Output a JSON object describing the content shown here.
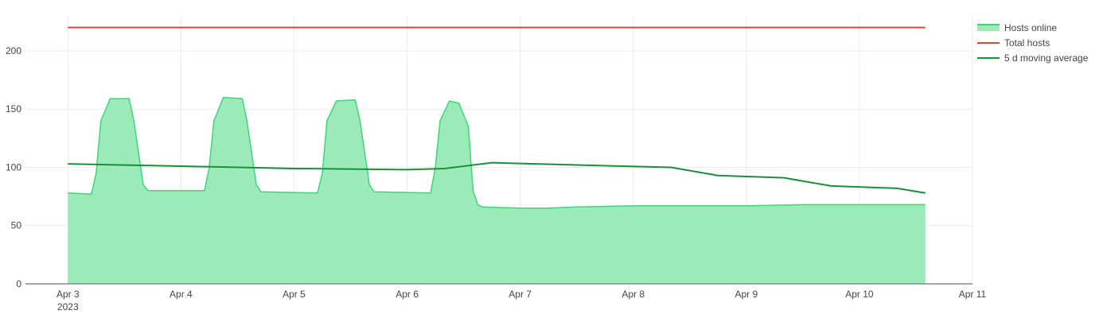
{
  "chart_data": {
    "type": "area",
    "x_axis": {
      "type": "date",
      "range": [
        "2023-04-02T15:00",
        "2023-04-11T00:00"
      ],
      "ticks": [
        {
          "value": "2023-04-03",
          "label": "Apr 3",
          "sublabel": "2023"
        },
        {
          "value": "2023-04-04",
          "label": "Apr 4"
        },
        {
          "value": "2023-04-05",
          "label": "Apr 5"
        },
        {
          "value": "2023-04-06",
          "label": "Apr 6"
        },
        {
          "value": "2023-04-07",
          "label": "Apr 7"
        },
        {
          "value": "2023-04-08",
          "label": "Apr 8"
        },
        {
          "value": "2023-04-09",
          "label": "Apr 9"
        },
        {
          "value": "2023-04-10",
          "label": "Apr 10"
        },
        {
          "value": "2023-04-11",
          "label": "Apr 11"
        }
      ]
    },
    "y_axis": {
      "range": [
        0,
        230
      ],
      "ticks": [
        {
          "value": 0,
          "label": "0"
        },
        {
          "value": 50,
          "label": "50"
        },
        {
          "value": 100,
          "label": "100"
        },
        {
          "value": 150,
          "label": "150"
        },
        {
          "value": 200,
          "label": "200"
        }
      ]
    },
    "grid": true,
    "legend_position": "top-right",
    "series": [
      {
        "name": "Hosts online",
        "kind": "area",
        "color": "#3dd67a",
        "fill_color": "#9deab9",
        "points": [
          [
            "2023-04-03T00:00",
            78
          ],
          [
            "2023-04-03T05:00",
            77
          ],
          [
            "2023-04-03T06:00",
            95
          ],
          [
            "2023-04-03T07:00",
            140
          ],
          [
            "2023-04-03T09:00",
            159
          ],
          [
            "2023-04-03T13:00",
            159
          ],
          [
            "2023-04-03T14:00",
            140
          ],
          [
            "2023-04-03T16:00",
            85
          ],
          [
            "2023-04-03T17:00",
            80
          ],
          [
            "2023-04-04T00:00",
            80
          ],
          [
            "2023-04-04T05:00",
            80
          ],
          [
            "2023-04-04T06:00",
            100
          ],
          [
            "2023-04-04T07:00",
            140
          ],
          [
            "2023-04-04T09:00",
            160
          ],
          [
            "2023-04-04T13:00",
            159
          ],
          [
            "2023-04-04T14:00",
            140
          ],
          [
            "2023-04-04T16:00",
            85
          ],
          [
            "2023-04-04T17:00",
            79
          ],
          [
            "2023-04-05T05:00",
            78
          ],
          [
            "2023-04-05T06:00",
            95
          ],
          [
            "2023-04-05T07:00",
            140
          ],
          [
            "2023-04-05T09:00",
            157
          ],
          [
            "2023-04-05T13:00",
            158
          ],
          [
            "2023-04-05T14:00",
            140
          ],
          [
            "2023-04-05T16:00",
            85
          ],
          [
            "2023-04-05T17:00",
            79
          ],
          [
            "2023-04-06T05:00",
            78
          ],
          [
            "2023-04-06T06:00",
            100
          ],
          [
            "2023-04-06T07:00",
            140
          ],
          [
            "2023-04-06T09:00",
            157
          ],
          [
            "2023-04-06T11:00",
            155
          ],
          [
            "2023-04-06T13:00",
            135
          ],
          [
            "2023-04-06T14:00",
            80
          ],
          [
            "2023-04-06T15:00",
            68
          ],
          [
            "2023-04-06T16:00",
            66
          ],
          [
            "2023-04-07T00:00",
            65
          ],
          [
            "2023-04-07T06:00",
            65
          ],
          [
            "2023-04-07T12:00",
            66
          ],
          [
            "2023-04-08T00:00",
            67
          ],
          [
            "2023-04-08T12:00",
            67
          ],
          [
            "2023-04-09T00:00",
            67
          ],
          [
            "2023-04-09T12:00",
            68
          ],
          [
            "2023-04-10T00:00",
            68
          ],
          [
            "2023-04-10T12:00",
            68
          ],
          [
            "2023-04-10T14:00",
            68
          ]
        ]
      },
      {
        "name": "Total hosts",
        "kind": "line",
        "color": "#e8413c",
        "points": [
          [
            "2023-04-03T00:00",
            220
          ],
          [
            "2023-04-10T14:00",
            220
          ]
        ]
      },
      {
        "name": "5 d moving average",
        "kind": "line",
        "color": "#1a8f3a",
        "points": [
          [
            "2023-04-03T00:00",
            103
          ],
          [
            "2023-04-04T00:00",
            101
          ],
          [
            "2023-04-05T00:00",
            99
          ],
          [
            "2023-04-06T00:00",
            98
          ],
          [
            "2023-04-06T08:00",
            99
          ],
          [
            "2023-04-06T18:00",
            104
          ],
          [
            "2023-04-07T12:00",
            102
          ],
          [
            "2023-04-08T08:00",
            100
          ],
          [
            "2023-04-08T18:00",
            93
          ],
          [
            "2023-04-09T08:00",
            91
          ],
          [
            "2023-04-09T18:00",
            84
          ],
          [
            "2023-04-10T08:00",
            82
          ],
          [
            "2023-04-10T14:00",
            78
          ]
        ]
      }
    ]
  }
}
